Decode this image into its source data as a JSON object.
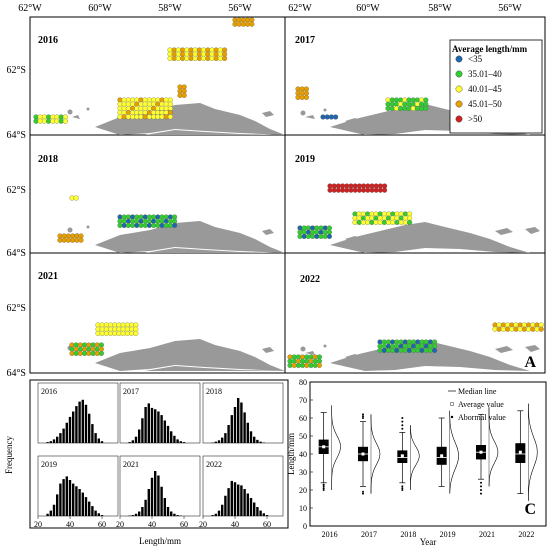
{
  "panel_a": {
    "letter": "A",
    "lon_top": [
      "62°W",
      "60°W",
      "58°W",
      "56°W"
    ],
    "lon_top_right": [
      "62°W",
      "60°W",
      "58°W",
      "56°W"
    ],
    "lat_labels": [
      "62°S",
      "64°S",
      "62°S",
      "64°S",
      "62°S",
      "64°S"
    ],
    "years": [
      "2016",
      "2017",
      "2018",
      "2019",
      "2021",
      "2022"
    ],
    "legend": {
      "title": "Average length/mm",
      "items": [
        {
          "label": "<35",
          "color": "#2166ac"
        },
        {
          "label": "35.01–40",
          "color": "#33cc33"
        },
        {
          "label": "40.01–45",
          "color": "#ffff33"
        },
        {
          "label": "45.01–50",
          "color": "#e69f00"
        },
        {
          "label": ">50",
          "color": "#cc2222"
        }
      ]
    }
  },
  "chart_data": [
    {
      "type": "bar",
      "panel": "B",
      "ylabel": "Frequency",
      "xlabel": "Length/mm",
      "xticks": [
        20,
        40,
        60
      ],
      "xlim": [
        20,
        70
      ],
      "bin_centers": [
        26,
        28,
        30,
        32,
        34,
        36,
        38,
        40,
        42,
        44,
        46,
        48,
        50,
        52,
        54,
        56,
        58,
        60
      ],
      "series": [
        {
          "name": "2016",
          "values": [
            0.02,
            0.04,
            0.08,
            0.14,
            0.22,
            0.32,
            0.45,
            0.58,
            0.7,
            0.82,
            0.92,
            0.96,
            0.85,
            0.65,
            0.42,
            0.22,
            0.1,
            0.04
          ]
        },
        {
          "name": "2017",
          "values": [
            0.02,
            0.06,
            0.14,
            0.3,
            0.55,
            0.8,
            0.88,
            0.78,
            0.75,
            0.7,
            0.62,
            0.5,
            0.38,
            0.26,
            0.16,
            0.08,
            0.04,
            0.02
          ]
        },
        {
          "name": "2018",
          "values": [
            0.01,
            0.03,
            0.06,
            0.12,
            0.22,
            0.4,
            0.62,
            0.8,
            1.0,
            0.9,
            0.68,
            0.45,
            0.26,
            0.14,
            0.07,
            0.03,
            0.01,
            0.0
          ]
        },
        {
          "name": "2019",
          "values": [
            0.05,
            0.12,
            0.25,
            0.48,
            0.72,
            0.82,
            0.88,
            0.8,
            0.72,
            0.66,
            0.6,
            0.52,
            0.42,
            0.32,
            0.22,
            0.12,
            0.06,
            0.02
          ]
        },
        {
          "name": "2021",
          "values": [
            0.01,
            0.02,
            0.05,
            0.1,
            0.2,
            0.36,
            0.6,
            0.85,
            1.0,
            0.9,
            0.65,
            0.4,
            0.2,
            0.1,
            0.05,
            0.02,
            0.01,
            0.0
          ]
        },
        {
          "name": "2022",
          "values": [
            0.02,
            0.05,
            0.12,
            0.25,
            0.45,
            0.62,
            0.78,
            0.75,
            0.7,
            0.68,
            0.6,
            0.5,
            0.4,
            0.3,
            0.2,
            0.12,
            0.06,
            0.02
          ]
        }
      ]
    },
    {
      "type": "box",
      "panel": "C",
      "letter": "C",
      "xlabel": "Year",
      "ylabel": "Length/mm",
      "ylim": [
        0,
        80
      ],
      "yticks": [
        0,
        10,
        20,
        30,
        40,
        50,
        60,
        70,
        80
      ],
      "categories": [
        "2016",
        "2017",
        "2018",
        "2019",
        "2021",
        "2022"
      ],
      "boxes": [
        {
          "whisker_low": 24,
          "q1": 40,
          "median": 44,
          "mean": 44,
          "q3": 48,
          "whisker_high": 63,
          "outliers": [
            20,
            21,
            22,
            23
          ]
        },
        {
          "whisker_low": 22,
          "q1": 36,
          "median": 40,
          "mean": 40,
          "q3": 44,
          "whisker_high": 58,
          "outliers": [
            18,
            19,
            60,
            61,
            62
          ]
        },
        {
          "whisker_low": 24,
          "q1": 35,
          "median": 38,
          "mean": 39,
          "q3": 42,
          "whisker_high": 52,
          "outliers": [
            20,
            21,
            22,
            54,
            56,
            58,
            60
          ]
        },
        {
          "whisker_low": 22,
          "q1": 34,
          "median": 38,
          "mean": 39,
          "q3": 44,
          "whisker_high": 60,
          "outliers": []
        },
        {
          "whisker_low": 26,
          "q1": 37,
          "median": 41,
          "mean": 41,
          "q3": 45,
          "whisker_high": 62,
          "outliers": [
            18,
            20,
            22,
            24
          ]
        },
        {
          "whisker_low": 18,
          "q1": 35,
          "median": 40,
          "mean": 41,
          "q3": 46,
          "whisker_high": 64,
          "outliers": []
        }
      ],
      "legend": [
        "Median line",
        "Average value",
        "Abormal value"
      ]
    }
  ]
}
